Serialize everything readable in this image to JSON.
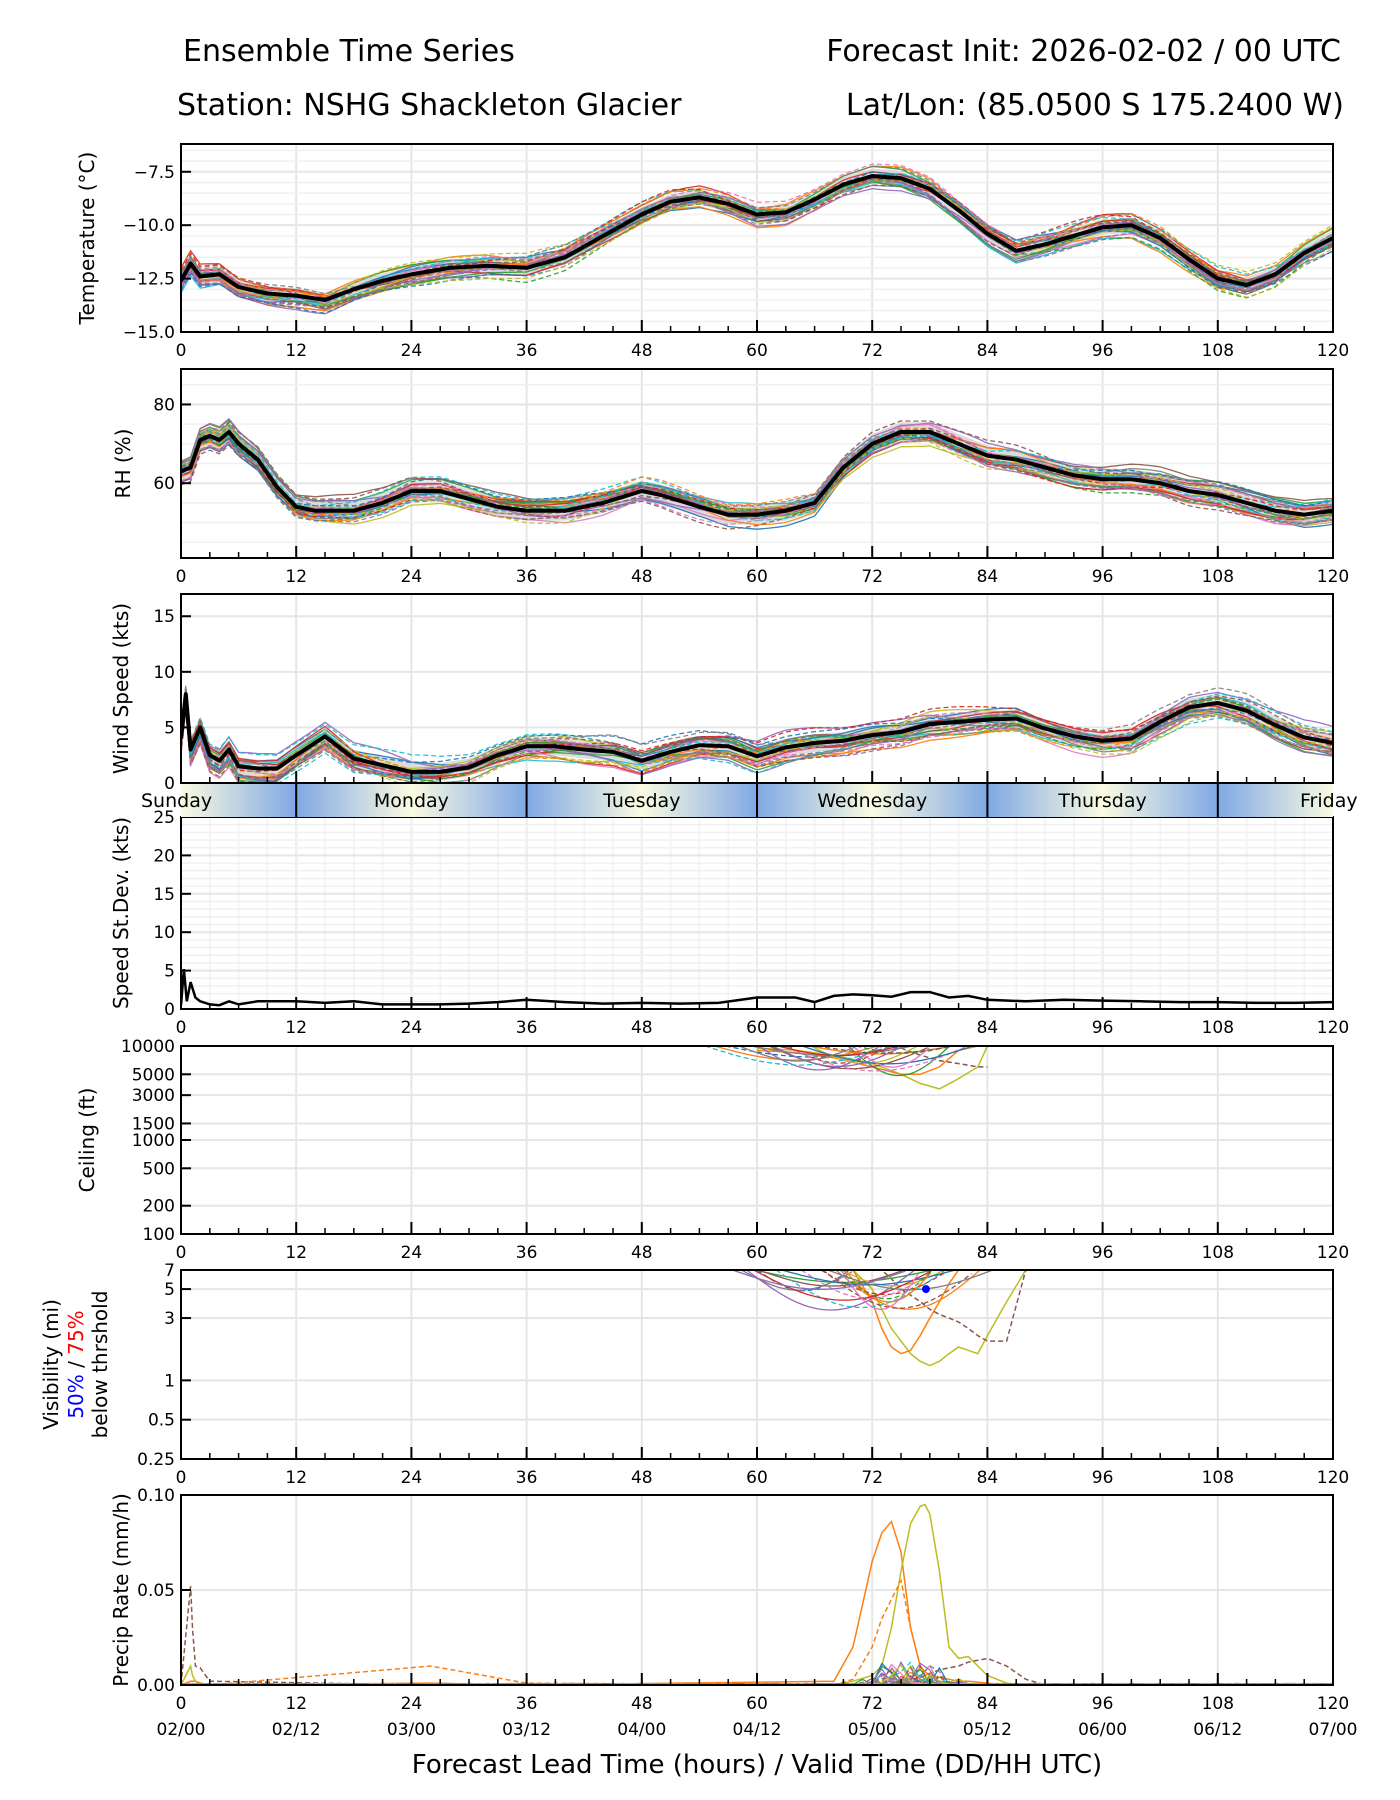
{
  "header": {
    "title_left": "Ensemble Time Series",
    "title_right": "Forecast Init: 2026-02-02 / 00 UTC",
    "station": "Station: NSHG Shackleton Glacier",
    "latlon": "Lat/Lon: (85.0500 S 175.2400 W)"
  },
  "chart_data": [
    {
      "type": "line",
      "id": "temperature",
      "ylabel": "Temperature (°C)",
      "ylim": [
        -15.0,
        -6.2
      ],
      "yticks": [
        -15.0,
        -12.5,
        -10.0,
        -7.5
      ],
      "ytick_labels": [
        "−15.0",
        "−12.5",
        "−10.0",
        "−7.5"
      ],
      "yscale": "linear",
      "x": [
        0,
        1,
        2,
        4,
        6,
        9,
        12,
        15,
        18,
        21,
        24,
        28,
        32,
        36,
        40,
        44,
        48,
        51,
        54,
        57,
        60,
        63,
        66,
        69,
        72,
        75,
        78,
        81,
        84,
        87,
        90,
        93,
        96,
        99,
        102,
        105,
        108,
        111,
        114,
        117,
        120
      ],
      "series": [
        {
          "name": "Ensemble mean",
          "values": [
            -12.6,
            -11.8,
            -12.4,
            -12.3,
            -12.9,
            -13.2,
            -13.3,
            -13.5,
            -13.0,
            -12.6,
            -12.3,
            -12.0,
            -11.9,
            -12.0,
            -11.5,
            -10.5,
            -9.5,
            -8.9,
            -8.7,
            -9.0,
            -9.5,
            -9.4,
            -8.8,
            -8.1,
            -7.7,
            -7.8,
            -8.3,
            -9.3,
            -10.4,
            -11.2,
            -10.9,
            -10.5,
            -10.1,
            -10.0,
            -10.6,
            -11.6,
            -12.5,
            -12.8,
            -12.3,
            -11.3,
            -10.6
          ]
        }
      ],
      "members": 30,
      "spread_shading": true
    },
    {
      "type": "line",
      "id": "rh",
      "ylabel": "RH (%)",
      "ylim": [
        41,
        89
      ],
      "yticks": [
        60,
        80
      ],
      "ytick_labels": [
        "60",
        "80"
      ],
      "yscale": "linear",
      "x": [
        0,
        1,
        2,
        3,
        4,
        5,
        6,
        8,
        10,
        12,
        14,
        18,
        21,
        24,
        27,
        30,
        33,
        36,
        40,
        44,
        48,
        50,
        54,
        57,
        60,
        63,
        66,
        69,
        72,
        75,
        78,
        81,
        84,
        87,
        90,
        93,
        96,
        99,
        102,
        105,
        108,
        111,
        114,
        117,
        120
      ],
      "series": [
        {
          "name": "Ensemble mean",
          "values": [
            63,
            64,
            71,
            72,
            71,
            73,
            70,
            66,
            59,
            54,
            53,
            53,
            55,
            58,
            58,
            56,
            54,
            53,
            53,
            55,
            58,
            57,
            54,
            52,
            52,
            53,
            55,
            64,
            70,
            73,
            73,
            70,
            67,
            66,
            64,
            62,
            61,
            61,
            60,
            58,
            57,
            55,
            53,
            52,
            53
          ]
        }
      ],
      "members": 30,
      "spread_shading": true
    },
    {
      "type": "line",
      "id": "wind_speed",
      "ylabel": "Wind Speed (kts)",
      "ylim": [
        0,
        17
      ],
      "yticks": [
        0,
        5,
        10,
        15
      ],
      "ytick_labels": [
        "0",
        "5",
        "10",
        "15"
      ],
      "yscale": "linear",
      "x": [
        0,
        0.5,
        1,
        2,
        3,
        4,
        5,
        6,
        8,
        10,
        12,
        15,
        18,
        21,
        24,
        27,
        30,
        33,
        36,
        39,
        42,
        45,
        48,
        51,
        54,
        57,
        60,
        63,
        66,
        69,
        72,
        75,
        78,
        81,
        84,
        87,
        90,
        93,
        96,
        99,
        102,
        105,
        108,
        111,
        114,
        117,
        120
      ],
      "series": [
        {
          "name": "Ensemble mean",
          "values": [
            4,
            8,
            3,
            5,
            2.5,
            2,
            3,
            1.5,
            1.3,
            1.3,
            2.5,
            4.2,
            2.2,
            1.6,
            1.0,
            1.0,
            1.4,
            2.5,
            3.3,
            3.3,
            3.0,
            2.8,
            2.0,
            2.8,
            3.4,
            3.3,
            2.4,
            3.2,
            3.6,
            3.8,
            4.3,
            4.6,
            5.3,
            5.5,
            5.7,
            5.8,
            4.9,
            4.2,
            3.8,
            4.0,
            5.5,
            6.8,
            7.2,
            6.5,
            5.2,
            4.1,
            3.6
          ]
        }
      ],
      "members": 30,
      "spread_shading": true
    },
    {
      "type": "line",
      "id": "speed_stdev",
      "ylabel": "Speed St.Dev. (kts)",
      "ylim": [
        0,
        25
      ],
      "yticks": [
        0,
        5,
        10,
        15,
        20,
        25
      ],
      "ytick_labels": [
        "0",
        "5",
        "10",
        "15",
        "20",
        "25"
      ],
      "yscale": "linear",
      "x": [
        0,
        0.3,
        0.6,
        1,
        1.5,
        2,
        3,
        4,
        5,
        6,
        8,
        10,
        12,
        15,
        18,
        21,
        24,
        27,
        30,
        33,
        36,
        40,
        44,
        48,
        52,
        56,
        60,
        64,
        66,
        68,
        70,
        72,
        74,
        76,
        78,
        80,
        82,
        84,
        88,
        92,
        96,
        100,
        104,
        108,
        112,
        116,
        120
      ],
      "series": [
        {
          "name": "Ensemble spread",
          "values": [
            0.5,
            5.2,
            1.0,
            3.5,
            1.5,
            1.0,
            0.6,
            0.5,
            1.0,
            0.6,
            1.0,
            1.0,
            1.0,
            0.8,
            1.0,
            0.6,
            0.6,
            0.6,
            0.7,
            0.9,
            1.2,
            0.9,
            0.7,
            0.8,
            0.7,
            0.8,
            1.5,
            1.5,
            0.9,
            1.7,
            1.9,
            1.8,
            1.6,
            2.2,
            2.2,
            1.5,
            1.7,
            1.2,
            1.0,
            1.2,
            1.1,
            1.0,
            0.9,
            0.9,
            0.8,
            0.8,
            0.9
          ]
        }
      ]
    },
    {
      "type": "line",
      "id": "ceiling",
      "ylabel": "Ceiling (ft)",
      "ylim": [
        100,
        10000
      ],
      "yticks": [
        100,
        200,
        500,
        1000,
        1500,
        3000,
        5000,
        10000
      ],
      "ytick_labels": [
        "100",
        "200",
        "500",
        "1000",
        "1500",
        "3000",
        "5000",
        "10000"
      ],
      "yscale": "log",
      "x": [
        60,
        64,
        68,
        72,
        75,
        77,
        79,
        81,
        83,
        84
      ],
      "series": [
        {
          "name": "Member (lowest, olive)",
          "values": [
            9500,
            9000,
            8000,
            6500,
            5000,
            4000,
            3500,
            4500,
            6000,
            10000
          ]
        },
        {
          "name": "Member (orange)",
          "values": [
            9000,
            8500,
            7500,
            6000,
            5000,
            5000,
            6000,
            9000,
            10000,
            10000
          ]
        },
        {
          "name": "Member (brown dashed)",
          "values": [
            10000,
            10000,
            10000,
            10000,
            9500,
            8000,
            7000,
            6500,
            6000,
            6000
          ]
        }
      ],
      "note": "Most members at or near 10000 ft; dips to ~3500 ft near hour 77"
    },
    {
      "type": "line",
      "id": "visibility",
      "ylabel": "Visibility (mi)",
      "ylabel_line2_blue": "50%",
      "ylabel_line2_sep": " / ",
      "ylabel_line2_red": "75%",
      "ylabel_line3": "below thrshold",
      "ylim": [
        0.25,
        7
      ],
      "yticks": [
        0.25,
        0.5,
        1,
        3,
        5,
        7
      ],
      "ytick_labels": [
        "0.25",
        "0.5",
        "1",
        "3",
        "5",
        "7"
      ],
      "yscale": "log",
      "x": [
        70,
        72,
        73,
        74,
        75,
        76,
        77,
        78,
        79,
        80,
        81,
        82,
        83,
        84,
        86,
        88
      ],
      "series": [
        {
          "name": "Member (olive)",
          "values": [
            7,
            5,
            3.5,
            2.5,
            2.0,
            1.6,
            1.4,
            1.3,
            1.4,
            1.6,
            1.8,
            1.7,
            1.6,
            2.2,
            4.0,
            7
          ]
        },
        {
          "name": "Member (orange)",
          "values": [
            7,
            4,
            2.5,
            1.8,
            1.6,
            1.7,
            2.2,
            3.0,
            4.0,
            5.5,
            7,
            7,
            7,
            7,
            7,
            7
          ]
        },
        {
          "name": "Member (brown dashed)",
          "values": [
            7,
            7,
            7,
            6,
            5,
            4.5,
            4,
            3.5,
            3.2,
            3.0,
            2.8,
            2.5,
            2.2,
            2.0,
            2.0,
            7
          ]
        }
      ],
      "markers": [
        {
          "x": 77.6,
          "y": 5,
          "color": "#0000ff",
          "label": "50% below threshold"
        }
      ]
    },
    {
      "type": "line",
      "id": "precip_rate",
      "ylabel": "Precip Rate (mm/h)",
      "ylim": [
        0,
        0.1
      ],
      "yticks": [
        0.0,
        0.05,
        0.1
      ],
      "ytick_labels": [
        "0.00",
        "0.05",
        "0.10"
      ],
      "yscale": "linear",
      "x": [
        0,
        1,
        1.2,
        1.5,
        2,
        3,
        26,
        36,
        68,
        70,
        72,
        73,
        74,
        75,
        76,
        77,
        77.5,
        78,
        79,
        80,
        81,
        82,
        84,
        86,
        88,
        90
      ],
      "series": [
        {
          "name": "Member (orange)",
          "values": [
            0,
            0.002,
            0.002,
            0.002,
            0.001,
            0.0,
            0.001,
            0.0,
            0.002,
            0.02,
            0.065,
            0.08,
            0.086,
            0.07,
            0.03,
            0.01,
            0.007,
            0.005,
            0.004,
            0.003,
            0.002,
            0.002,
            0.001,
            0.0,
            0.0,
            0.0
          ]
        },
        {
          "name": "Member (olive)",
          "values": [
            0,
            0.01,
            0.005,
            0.002,
            0.001,
            0.0,
            0.0,
            0.0,
            0.0,
            0.002,
            0.005,
            0.01,
            0.03,
            0.06,
            0.085,
            0.094,
            0.095,
            0.09,
            0.06,
            0.02,
            0.014,
            0.015,
            0.005,
            0.001,
            0.0,
            0.0
          ]
        },
        {
          "name": "Member (brown dashed)",
          "values": [
            0,
            0.052,
            0.03,
            0.01,
            0.009,
            0.002,
            0.0,
            0.0,
            0.0,
            0.0,
            0.0,
            0.001,
            0.002,
            0.002,
            0.003,
            0.004,
            0.005,
            0.006,
            0.008,
            0.009,
            0.01,
            0.012,
            0.014,
            0.01,
            0.003,
            0.0
          ]
        },
        {
          "name": "Member (orange dashed)",
          "values": [
            0,
            0.002,
            0.002,
            0.001,
            0.001,
            0.0,
            0.01,
            0.001,
            0.0,
            0.003,
            0.02,
            0.035,
            0.045,
            0.055,
            0.03,
            0.01,
            0.005,
            0.003,
            0.002,
            0.001,
            0.0,
            0.0,
            0.0,
            0.0,
            0.0,
            0.0
          ]
        }
      ]
    }
  ],
  "xaxis": {
    "xlim": [
      0,
      120
    ],
    "ticks": [
      0,
      12,
      24,
      36,
      48,
      60,
      72,
      84,
      96,
      108,
      120
    ],
    "tick_labels": [
      "0",
      "12",
      "24",
      "36",
      "48",
      "60",
      "72",
      "84",
      "96",
      "108",
      "120"
    ],
    "valid_time_labels": [
      "02/00",
      "02/12",
      "03/00",
      "03/12",
      "04/00",
      "04/12",
      "05/00",
      "05/12",
      "06/00",
      "06/12",
      "07/00"
    ],
    "xlabel": "Forecast Lead Time (hours) / Valid Time (DD/HH UTC)"
  },
  "day_bar": {
    "days": [
      "Sunday",
      "Monday",
      "Tuesday",
      "Wednesday",
      "Thursday",
      "Friday"
    ],
    "boundaries_hours": [
      12,
      36,
      60,
      84,
      108
    ],
    "colors": {
      "day": "#fbfbe2",
      "night": "#7fa8e4"
    }
  },
  "colors": {
    "mean_line": "#000000",
    "spread_band": "#d3d3d3",
    "grid": "#e6e6e6",
    "member_palette": [
      "#1f77b4",
      "#ff7f0e",
      "#2ca02c",
      "#d62728",
      "#9467bd",
      "#8c564b",
      "#e377c2",
      "#7f7f7f",
      "#bcbd22",
      "#17becf"
    ],
    "label_blue": "#0000ff",
    "label_red": "#ff0000"
  }
}
